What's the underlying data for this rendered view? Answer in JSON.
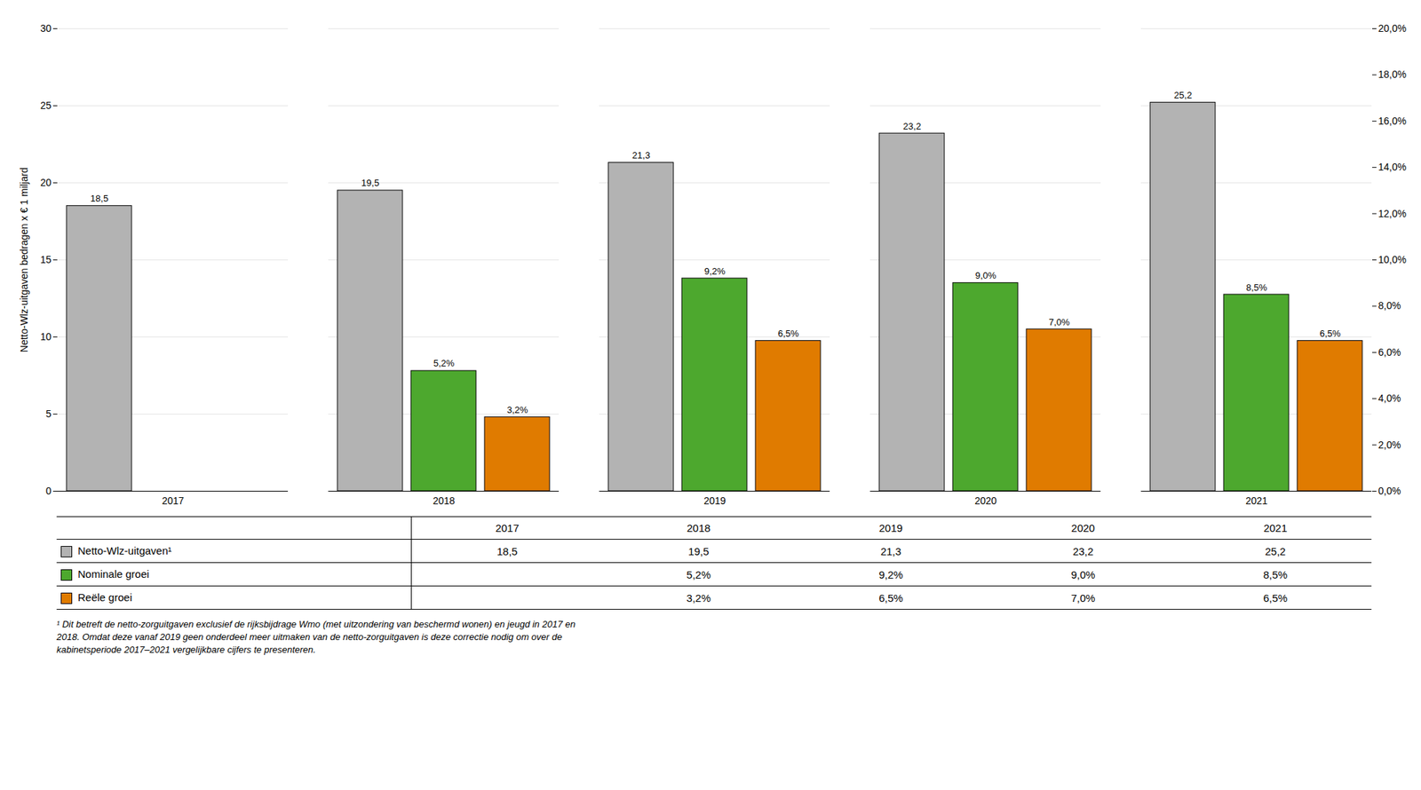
{
  "chart_data": {
    "type": "bar",
    "categories": [
      "2017",
      "2018",
      "2019",
      "2020",
      "2021"
    ],
    "ylabel": "Netto-Wlz-uitgaven bedragen x € 1 miljard",
    "ylim": [
      0,
      30
    ],
    "yticks": [
      0,
      5,
      10,
      15,
      20,
      25,
      30
    ],
    "y2lim": [
      0,
      20
    ],
    "y2ticks": [
      {
        "value": 0,
        "label": "0,0%"
      },
      {
        "value": 2,
        "label": "2,0%"
      },
      {
        "value": 4,
        "label": "4,0%"
      },
      {
        "value": 6,
        "label": "6,0%"
      },
      {
        "value": 8,
        "label": "8,0%"
      },
      {
        "value": 10,
        "label": "10,0%"
      },
      {
        "value": 12,
        "label": "12,0%"
      },
      {
        "value": 14,
        "label": "14,0%"
      },
      {
        "value": 16,
        "label": "16,0%"
      },
      {
        "value": 18,
        "label": "18,0%"
      },
      {
        "value": 20,
        "label": "20,0%"
      }
    ],
    "grid": true,
    "data_labels": true,
    "series": [
      {
        "name": "Netto-Wlz-uitgaven¹",
        "color": "#b3b3b3",
        "values": [
          18.5,
          19.5,
          21.3,
          23.2,
          25.2
        ],
        "value_labels": [
          "18,5",
          "19,5",
          "21,3",
          "23,2",
          "25,2"
        ]
      },
      {
        "name": "Nominale groei",
        "color": "#4da82e",
        "axis": "y2",
        "values": [
          null,
          5.2,
          9.2,
          9.0,
          8.5
        ],
        "value_labels": [
          null,
          "5,2%",
          "9,2%",
          "9,0%",
          "8,5%"
        ]
      },
      {
        "name": "Reële groei",
        "color": "#e07b00",
        "axis": "y2",
        "values": [
          null,
          3.2,
          6.5,
          7.0,
          6.5
        ],
        "value_labels": [
          null,
          "3,2%",
          "6,5%",
          "7,0%",
          "6,5%"
        ]
      }
    ],
    "footnote": [
      "¹ Dit betreft de netto-zorguitgaven exclusief de rijksbijdrage Wmo (met uitzondering van beschermd wonen) en jeugd in 2017 en",
      "2018. Omdat deze vanaf 2019 geen onderdeel meer uitmaken van de netto-zorguitgaven is deze correctie nodig om over de",
      "kabinetsperiode 2017–2021 vergelijkbare cijfers te presenteren."
    ]
  }
}
